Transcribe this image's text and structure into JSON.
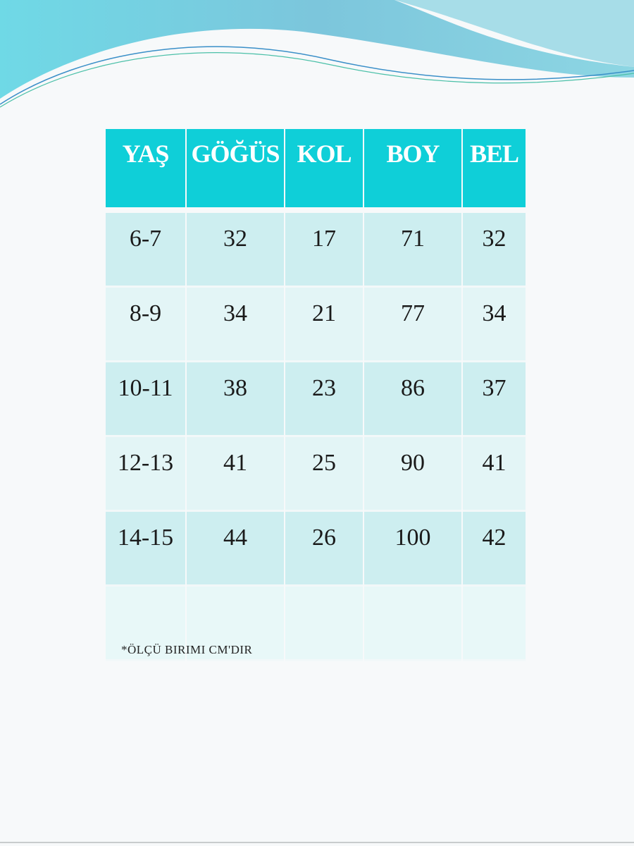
{
  "colors": {
    "header": "#0fcfd8",
    "row_dark": "#cdeef0",
    "row_light": "#e3f5f6",
    "wave": "#5fcde0"
  },
  "table": {
    "headers": [
      "YAŞ",
      "GÖĞÜS",
      "KOL",
      "BOY",
      "BEL"
    ],
    "rows": [
      [
        "6-7",
        "32",
        "17",
        "71",
        "32"
      ],
      [
        "8-9",
        "34",
        "21",
        "77",
        "34"
      ],
      [
        "10-11",
        "38",
        "23",
        "86",
        "37"
      ],
      [
        "12-13",
        "41",
        "25",
        "90",
        "41"
      ],
      [
        "14-15",
        "44",
        "26",
        "100",
        "42"
      ]
    ]
  },
  "footnote": "*ÖLÇÜ BIRIMI CM'DIR"
}
